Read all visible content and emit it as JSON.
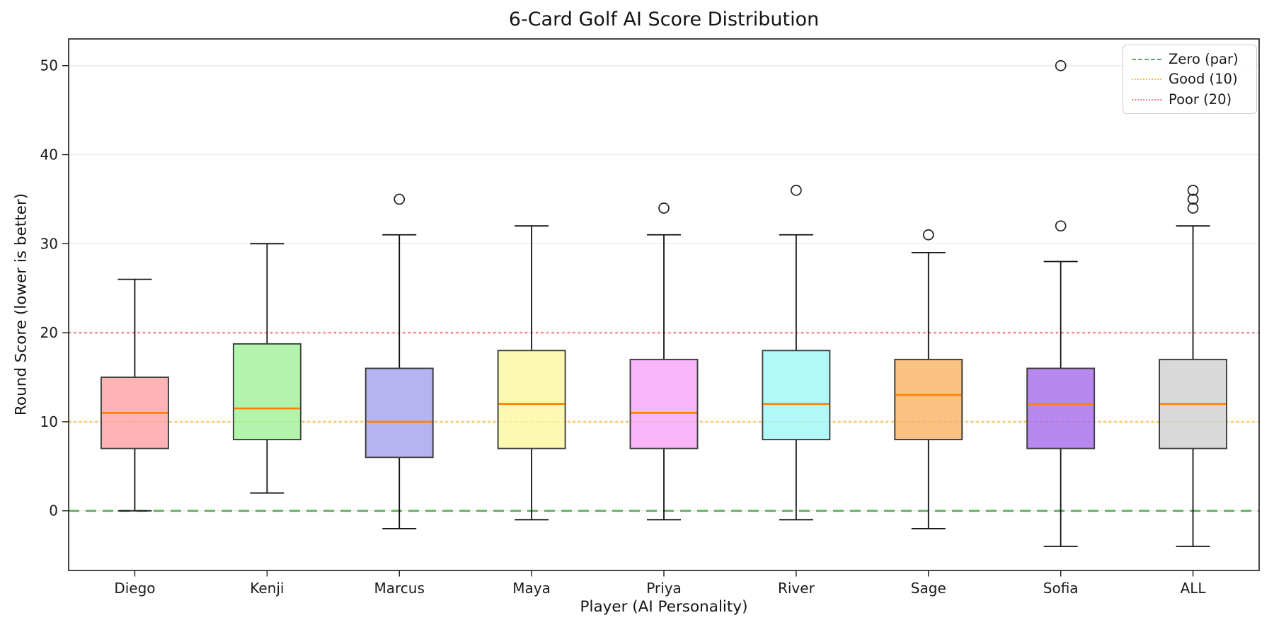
{
  "chart_data": {
    "type": "boxplot",
    "title": "6-Card Golf AI Score Distribution",
    "xlabel": "Player (AI Personality)",
    "ylabel": "Round Score (lower is better)",
    "yticks": [
      0,
      10,
      20,
      30,
      40,
      50
    ],
    "ylim": [
      -6.7,
      53
    ],
    "grid": "horizontal light gray lines at y ticks",
    "legend_position": "upper right",
    "median_color": "#ff8103",
    "box_edge_color": "#3d3d3d",
    "whisker_color": "#111111",
    "outlier_stroke": "#222222",
    "box_fill_opacity": 0.8,
    "ref_lines": [
      {
        "label": "Zero (par)",
        "value": 0,
        "style": "dashed",
        "color": "#5fad5f"
      },
      {
        "label": "Good (10)",
        "value": 10,
        "style": "dotted",
        "color": "#ffc14d"
      },
      {
        "label": "Poor (20)",
        "value": 20,
        "style": "dotted",
        "color": "#fc8181"
      }
    ],
    "players": [
      {
        "name": "Diego",
        "fill": "#ffa0a2",
        "whisker_low": 0,
        "q1": 7,
        "median": 11,
        "q3": 15,
        "whisker_high": 26,
        "outliers": []
      },
      {
        "name": "Kenji",
        "fill": "#9ff197",
        "whisker_low": 2,
        "q1": 8,
        "median": 11.5,
        "q3": 18.75,
        "whisker_high": 30,
        "outliers": []
      },
      {
        "name": "Marcus",
        "fill": "#a4a0ee",
        "whisker_low": -2,
        "q1": 6,
        "median": 10,
        "q3": 16,
        "whisker_high": 31,
        "outliers": [
          35
        ]
      },
      {
        "name": "Maya",
        "fill": "#fbf99f",
        "whisker_low": -1,
        "q1": 7,
        "median": 12,
        "q3": 18,
        "whisker_high": 32,
        "outliers": []
      },
      {
        "name": "Priya",
        "fill": "#f8a4f8",
        "whisker_low": -1,
        "q1": 7,
        "median": 11,
        "q3": 17,
        "whisker_high": 31,
        "outliers": [
          34
        ]
      },
      {
        "name": "River",
        "fill": "#a0f6f6",
        "whisker_low": -1,
        "q1": 8,
        "median": 12,
        "q3": 18,
        "whisker_high": 31,
        "outliers": [
          36
        ]
      },
      {
        "name": "Sage",
        "fill": "#f8b363",
        "whisker_low": -2,
        "q1": 8,
        "median": 13,
        "q3": 17,
        "whisker_high": 29,
        "outliers": [
          31
        ]
      },
      {
        "name": "Sofia",
        "fill": "#a56aeb",
        "whisker_low": -4,
        "q1": 7,
        "median": 12,
        "q3": 16,
        "whisker_high": 28,
        "outliers": [
          32,
          50
        ]
      },
      {
        "name": "ALL",
        "fill": "#d0d0d0",
        "whisker_low": -4,
        "q1": 7,
        "median": 12,
        "q3": 17,
        "whisker_high": 32,
        "outliers": [
          34,
          35,
          36
        ]
      }
    ]
  }
}
